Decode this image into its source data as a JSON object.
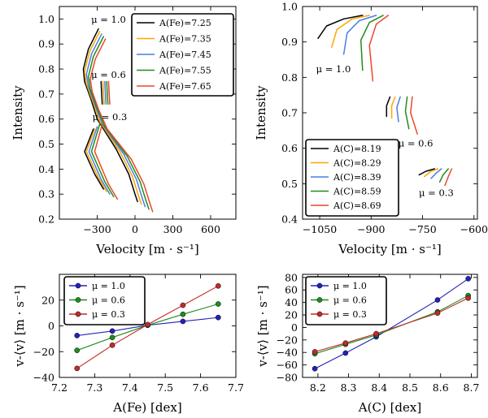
{
  "chart_data": [
    {
      "id": "fe-bisectors",
      "type": "line",
      "xlabel": "Velocity [m · s⁻¹]",
      "ylabel": "Intensity",
      "xlim": [
        -600,
        800
      ],
      "ylim": [
        0.2,
        1.05
      ],
      "xticks": [
        -300,
        0,
        300,
        600
      ],
      "xtick_labels": [
        "−300",
        "0",
        "300",
        "600"
      ],
      "yticks": [
        0.2,
        0.3,
        0.4,
        0.5,
        0.6,
        0.7,
        0.8,
        0.9,
        1.0
      ],
      "ytick_labels": [
        "0.2",
        "0.3",
        "0.4",
        "0.5",
        "0.6",
        "0.7",
        "0.8",
        "0.9",
        "1.0"
      ],
      "legend_position": "top-right",
      "annotations": [
        {
          "text": "μ = 1.0",
          "x": -210,
          "y": 0.985
        },
        {
          "text": "μ = 0.6",
          "x": -210,
          "y": 0.765
        },
        {
          "text": "μ = 0.3",
          "x": -200,
          "y": 0.595
        }
      ],
      "series": [
        {
          "name": "A(Fe)=7.25",
          "color": "#000000",
          "segments": [
            [
              [
                -270,
                0.75
              ],
              [
                -260,
                0.66
              ]
            ],
            [
              [
                -330,
                0.56
              ],
              [
                -400,
                0.47
              ],
              [
                -320,
                0.38
              ],
              [
                -250,
                0.32
              ]
            ],
            [
              [
                -290,
                0.96
              ],
              [
                -370,
                0.88
              ],
              [
                -410,
                0.8
              ],
              [
                -400,
                0.75
              ],
              [
                -350,
                0.68
              ],
              [
                -300,
                0.6
              ],
              [
                -150,
                0.48
              ],
              [
                -50,
                0.38
              ],
              [
                0,
                0.3
              ],
              [
                20,
                0.27
              ]
            ]
          ]
        },
        {
          "name": "A(Fe)=7.35",
          "color": "#FFA500",
          "segments": [
            [
              [
                -255,
                0.75
              ],
              [
                -245,
                0.66
              ]
            ],
            [
              [
                -320,
                0.56
              ],
              [
                -385,
                0.47
              ],
              [
                -295,
                0.37
              ],
              [
                -225,
                0.31
              ]
            ],
            [
              [
                -280,
                0.95
              ],
              [
                -360,
                0.87
              ],
              [
                -400,
                0.79
              ],
              [
                -385,
                0.74
              ],
              [
                -335,
                0.67
              ],
              [
                -280,
                0.59
              ],
              [
                -120,
                0.47
              ],
              [
                -20,
                0.37
              ],
              [
                30,
                0.29
              ],
              [
                50,
                0.26
              ]
            ]
          ]
        },
        {
          "name": "A(Fe)=7.45",
          "color": "#4A7FE0",
          "segments": [
            [
              [
                -240,
                0.75
              ],
              [
                -230,
                0.66
              ]
            ],
            [
              [
                -300,
                0.57
              ],
              [
                -365,
                0.47
              ],
              [
                -270,
                0.36
              ],
              [
                -200,
                0.3
              ]
            ],
            [
              [
                -265,
                0.94
              ],
              [
                -345,
                0.86
              ],
              [
                -385,
                0.78
              ],
              [
                -370,
                0.73
              ],
              [
                -320,
                0.66
              ],
              [
                -260,
                0.58
              ],
              [
                -90,
                0.46
              ],
              [
                10,
                0.36
              ],
              [
                60,
                0.28
              ],
              [
                80,
                0.25
              ]
            ]
          ]
        },
        {
          "name": "A(Fe)=7.55",
          "color": "#1F8C1F",
          "segments": [
            [
              [
                -225,
                0.75
              ],
              [
                -215,
                0.66
              ]
            ],
            [
              [
                -280,
                0.58
              ],
              [
                -345,
                0.47
              ],
              [
                -240,
                0.35
              ],
              [
                -170,
                0.29
              ]
            ],
            [
              [
                -250,
                0.93
              ],
              [
                -330,
                0.85
              ],
              [
                -370,
                0.77
              ],
              [
                -355,
                0.72
              ],
              [
                -305,
                0.65
              ],
              [
                -240,
                0.57
              ],
              [
                -60,
                0.45
              ],
              [
                40,
                0.35
              ],
              [
                90,
                0.27
              ],
              [
                110,
                0.24
              ]
            ]
          ]
        },
        {
          "name": "A(Fe)=7.65",
          "color": "#E8492A",
          "segments": [
            [
              [
                -210,
                0.75
              ],
              [
                -200,
                0.66
              ]
            ],
            [
              [
                -260,
                0.58
              ],
              [
                -320,
                0.47
              ],
              [
                -210,
                0.34
              ],
              [
                -140,
                0.28
              ]
            ],
            [
              [
                -235,
                0.92
              ],
              [
                -315,
                0.84
              ],
              [
                -355,
                0.76
              ],
              [
                -340,
                0.71
              ],
              [
                -290,
                0.64
              ],
              [
                -220,
                0.56
              ],
              [
                -30,
                0.44
              ],
              [
                70,
                0.34
              ],
              [
                120,
                0.26
              ],
              [
                140,
                0.23
              ]
            ]
          ]
        }
      ]
    },
    {
      "id": "c-bisectors",
      "type": "line",
      "xlabel": "Velocity [m · s⁻¹]",
      "ylabel": "Intensity",
      "xlim": [
        -1100,
        -590
      ],
      "ylim": [
        0.4,
        1.0
      ],
      "xticks": [
        -1050,
        -900,
        -750,
        -600
      ],
      "xtick_labels": [
        "−1050",
        "−900",
        "−750",
        "−600"
      ],
      "yticks": [
        0.4,
        0.5,
        0.6,
        0.7,
        0.8,
        0.9,
        1.0
      ],
      "ytick_labels": [
        "0.4",
        "0.5",
        "0.6",
        "0.7",
        "0.8",
        "0.9",
        "1.0"
      ],
      "legend_position": "bottom-left",
      "annotations": [
        {
          "text": "μ = 1.0",
          "x": -1010,
          "y": 0.815
        },
        {
          "text": "μ = 0.6",
          "x": -770,
          "y": 0.605
        },
        {
          "text": "μ = 0.3",
          "x": -710,
          "y": 0.465
        }
      ],
      "series": [
        {
          "name": "A(C)=8.19",
          "color": "#000000",
          "segments": [
            [
              [
                -925,
                0.975
              ],
              [
                -980,
                0.965
              ],
              [
                -1030,
                0.945
              ],
              [
                -1055,
                0.91
              ]
            ],
            [
              [
                -845,
                0.745
              ],
              [
                -855,
                0.72
              ],
              [
                -855,
                0.69
              ]
            ],
            [
              [
                -715,
                0.542
              ],
              [
                -740,
                0.535
              ],
              [
                -760,
                0.525
              ]
            ]
          ]
        },
        {
          "name": "A(C)=8.29",
          "color": "#FFA500",
          "segments": [
            [
              [
                -905,
                0.975
              ],
              [
                -955,
                0.965
              ],
              [
                -1000,
                0.935
              ],
              [
                -1015,
                0.885
              ]
            ],
            [
              [
                -830,
                0.745
              ],
              [
                -840,
                0.72
              ],
              [
                -840,
                0.685
              ]
            ],
            [
              [
                -705,
                0.542
              ],
              [
                -725,
                0.535
              ],
              [
                -745,
                0.52
              ]
            ]
          ]
        },
        {
          "name": "A(C)=8.39",
          "color": "#4A7FE0",
          "segments": [
            [
              [
                -885,
                0.975
              ],
              [
                -935,
                0.96
              ],
              [
                -970,
                0.925
              ],
              [
                -980,
                0.865
              ]
            ],
            [
              [
                -815,
                0.745
              ],
              [
                -825,
                0.715
              ],
              [
                -820,
                0.675
              ]
            ],
            [
              [
                -695,
                0.542
              ],
              [
                -710,
                0.53
              ],
              [
                -725,
                0.515
              ]
            ]
          ]
        },
        {
          "name": "A(C)=8.59",
          "color": "#1F8C1F",
          "segments": [
            [
              [
                -865,
                0.975
              ],
              [
                -905,
                0.955
              ],
              [
                -930,
                0.905
              ],
              [
                -925,
                0.82
              ]
            ],
            [
              [
                -795,
                0.745
              ],
              [
                -800,
                0.705
              ],
              [
                -790,
                0.655
              ]
            ],
            [
              [
                -675,
                0.542
              ],
              [
                -690,
                0.525
              ],
              [
                -700,
                0.505
              ]
            ]
          ]
        },
        {
          "name": "A(C)=8.69",
          "color": "#E8492A",
          "segments": [
            [
              [
                -850,
                0.975
              ],
              [
                -885,
                0.95
              ],
              [
                -905,
                0.89
              ],
              [
                -895,
                0.79
              ]
            ],
            [
              [
                -780,
                0.745
              ],
              [
                -785,
                0.7
              ],
              [
                -765,
                0.64
              ]
            ],
            [
              [
                -665,
                0.542
              ],
              [
                -675,
                0.52
              ],
              [
                -685,
                0.495
              ]
            ]
          ]
        }
      ]
    },
    {
      "id": "fe-shift",
      "type": "line",
      "xlabel": "A(Fe) [dex]",
      "ylabel": "v-⟨v⟩ [m · s⁻¹]",
      "xlim": [
        7.2,
        7.7
      ],
      "ylim": [
        -40,
        40
      ],
      "xticks": [
        7.2,
        7.3,
        7.4,
        7.5,
        7.6,
        7.7
      ],
      "xtick_labels": [
        "7.2",
        "7.3",
        "7.4",
        "7.5",
        "7.6",
        "7.7"
      ],
      "yticks": [
        -40,
        -20,
        0,
        20
      ],
      "ytick_labels": [
        "−40",
        "−20",
        "0",
        "20"
      ],
      "legend_position": "top-left",
      "x": [
        7.25,
        7.35,
        7.45,
        7.55,
        7.65
      ],
      "series": [
        {
          "name": "μ = 1.0",
          "color": "#2222BB",
          "values": [
            -7.5,
            -4,
            0.5,
            3.5,
            6.5
          ]
        },
        {
          "name": "μ = 0.6",
          "color": "#1F8C1F",
          "values": [
            -19,
            -9,
            0.5,
            9,
            17
          ]
        },
        {
          "name": "μ = 0.3",
          "color": "#C22A2A",
          "values": [
            -33,
            -15,
            1,
            16,
            31
          ]
        }
      ]
    },
    {
      "id": "c-shift",
      "type": "line",
      "xlabel": "A(C) [dex]",
      "ylabel": "v-⟨v⟩ [m · s⁻¹]",
      "xlim": [
        8.15,
        8.72
      ],
      "ylim": [
        -80,
        85
      ],
      "xticks": [
        8.2,
        8.3,
        8.4,
        8.5,
        8.6,
        8.7
      ],
      "xtick_labels": [
        "8.2",
        "8.3",
        "8.4",
        "8.5",
        "8.6",
        "8.7"
      ],
      "yticks": [
        -80,
        -60,
        -40,
        -20,
        0,
        20,
        40,
        60,
        80
      ],
      "ytick_labels": [
        "−80",
        "−60",
        "−40",
        "−20",
        "0",
        "20",
        "40",
        "60",
        "80"
      ],
      "legend_position": "top-left",
      "x": [
        8.19,
        8.29,
        8.39,
        8.59,
        8.69
      ],
      "series": [
        {
          "name": "μ = 1.0",
          "color": "#2222BB",
          "values": [
            -66,
            -41,
            -15,
            44,
            78
          ]
        },
        {
          "name": "μ = 0.6",
          "color": "#1F8C1F",
          "values": [
            -42,
            -27,
            -12,
            25,
            51
          ]
        },
        {
          "name": "μ = 0.3",
          "color": "#C22A2A",
          "values": [
            -39,
            -25,
            -10,
            23,
            47
          ]
        }
      ]
    }
  ]
}
